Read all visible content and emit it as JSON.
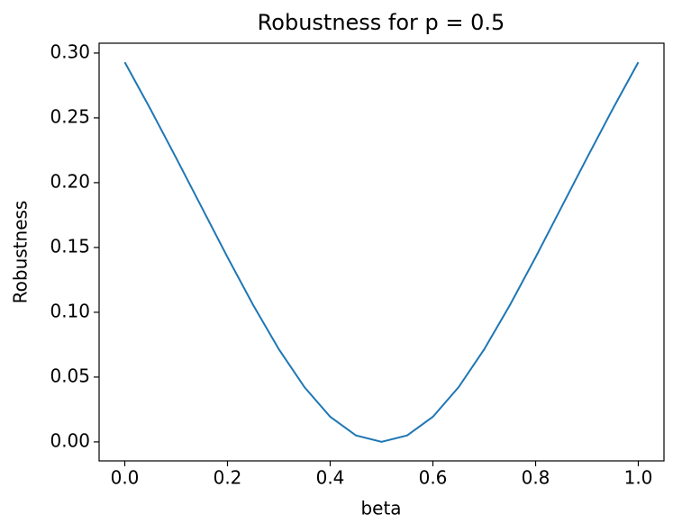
{
  "chart_data": {
    "type": "line",
    "title": "Robustness for p = 0.5",
    "x_label": "beta",
    "y_label": "Robustness",
    "x": [
      0.0,
      0.05,
      0.1,
      0.15,
      0.2,
      0.25,
      0.3,
      0.35,
      0.4,
      0.45,
      0.5,
      0.55,
      0.6,
      0.65,
      0.7,
      0.75,
      0.8,
      0.85,
      0.9,
      0.95,
      1.0
    ],
    "series": [
      {
        "name": "Robustness",
        "color": "#1f77b4",
        "values": [
          0.2929,
          0.2567,
          0.2191,
          0.1808,
          0.1425,
          0.1056,
          0.0715,
          0.0422,
          0.0194,
          0.005,
          0.0,
          0.005,
          0.0194,
          0.0422,
          0.0715,
          0.1056,
          0.1425,
          0.1808,
          0.2191,
          0.2567,
          0.2929
        ]
      }
    ],
    "xlim": [
      -0.05,
      1.05
    ],
    "xticks": [
      {
        "value": 0,
        "label": "0.0"
      },
      0.2,
      0.4,
      0.6,
      0.8,
      {
        "value": 1,
        "label": "1.0"
      }
    ],
    "ylim": [
      -0.01465,
      0.30759
    ],
    "yticks": [
      {
        "value": 0,
        "label": "0.00"
      },
      0.05,
      {
        "value": 0.1,
        "label": "0.10"
      },
      0.15,
      {
        "value": 0.2,
        "label": "0.20"
      },
      0.25,
      {
        "value": 0.3,
        "label": "0.30"
      }
    ],
    "grid": false
  }
}
